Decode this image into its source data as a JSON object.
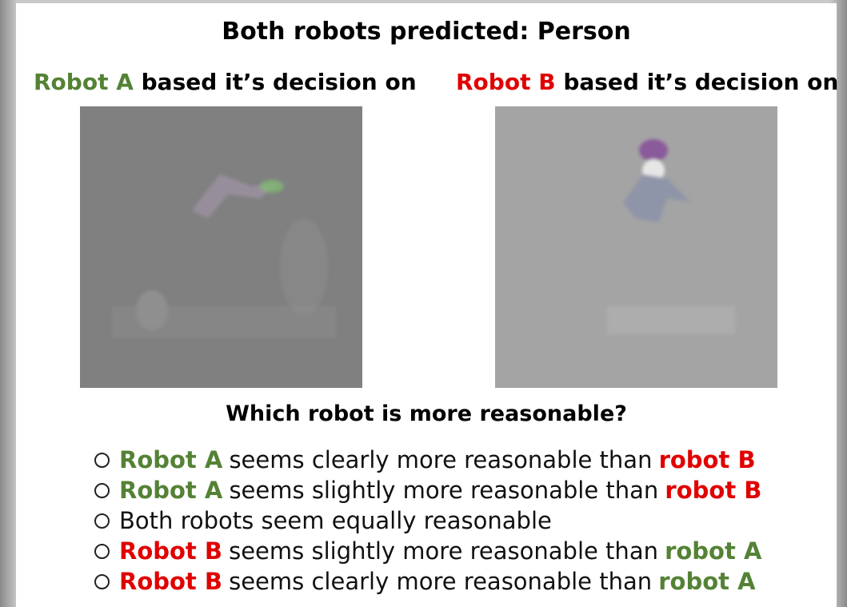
{
  "header": {
    "title": "Both robots predicted: Person"
  },
  "robot_a": {
    "name": "Robot A",
    "name_color": "#548235",
    "caption": "based it’s decision on"
  },
  "robot_b": {
    "name": "Robot B",
    "name_color": "#e00000",
    "caption": "based it’s decision on"
  },
  "question": "Which robot is more reasonable?",
  "options": [
    {
      "parts": [
        {
          "text": "Robot A",
          "color": "#548235",
          "bold": true
        },
        {
          "text": "seems clearly more reasonable than",
          "color": "#111111",
          "bold": false
        },
        {
          "text": "robot B",
          "color": "#e00000",
          "bold": true
        }
      ]
    },
    {
      "parts": [
        {
          "text": "Robot A",
          "color": "#548235",
          "bold": true
        },
        {
          "text": "seems slightly more reasonable than",
          "color": "#111111",
          "bold": false
        },
        {
          "text": "robot B",
          "color": "#e00000",
          "bold": true
        }
      ]
    },
    {
      "parts": [
        {
          "text": "Both robots seem equally reasonable",
          "color": "#111111",
          "bold": false
        }
      ]
    },
    {
      "parts": [
        {
          "text": "Robot B",
          "color": "#e00000",
          "bold": true
        },
        {
          "text": "seems slightly more reasonable than",
          "color": "#111111",
          "bold": false
        },
        {
          "text": "robot A",
          "color": "#548235",
          "bold": true
        }
      ]
    },
    {
      "parts": [
        {
          "text": "Robot B",
          "color": "#e00000",
          "bold": true
        },
        {
          "text": "seems clearly more reasonable than",
          "color": "#111111",
          "bold": false
        },
        {
          "text": "robot A",
          "color": "#548235",
          "bold": true
        }
      ]
    }
  ]
}
